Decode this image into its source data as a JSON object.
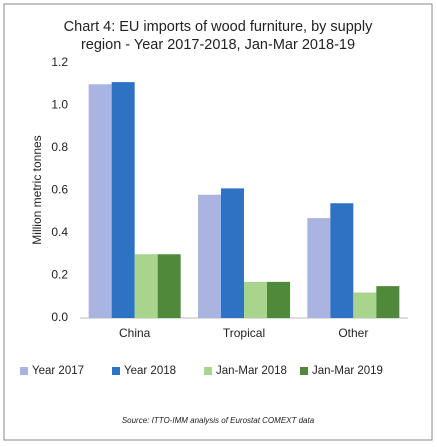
{
  "chart_data": {
    "type": "bar",
    "title": [
      "Chart 4: EU imports of wood furniture, by supply",
      "region - Year 2017-2018, Jan-Mar 2018-19"
    ],
    "y_label": "Million metric tonnes",
    "source": "Source: ITTO-IMM analysis of Eurostat COMEXT data",
    "categories": [
      "China",
      "Tropical",
      "Other"
    ],
    "series": [
      {
        "name": "Year 2017",
        "color": "#aab4e0",
        "values": [
          1.1,
          0.58,
          0.47
        ]
      },
      {
        "name": "Year 2018",
        "color": "#2e72c4",
        "values": [
          1.11,
          0.61,
          0.54
        ]
      },
      {
        "name": "Jan-Mar 2018",
        "color": "#a8d48e",
        "values": [
          0.3,
          0.17,
          0.12
        ]
      },
      {
        "name": "Jan-Mar 2019",
        "color": "#4e8a3a",
        "values": [
          0.3,
          0.17,
          0.15
        ]
      }
    ],
    "ylim": [
      0,
      1.2
    ],
    "yticks": [
      {
        "value": 0,
        "label": "0.0"
      },
      0.2,
      0.4,
      0.6,
      0.8,
      {
        "value": 1,
        "label": "1.0"
      },
      1.2
    ],
    "grid": false,
    "legend": "bottom"
  }
}
